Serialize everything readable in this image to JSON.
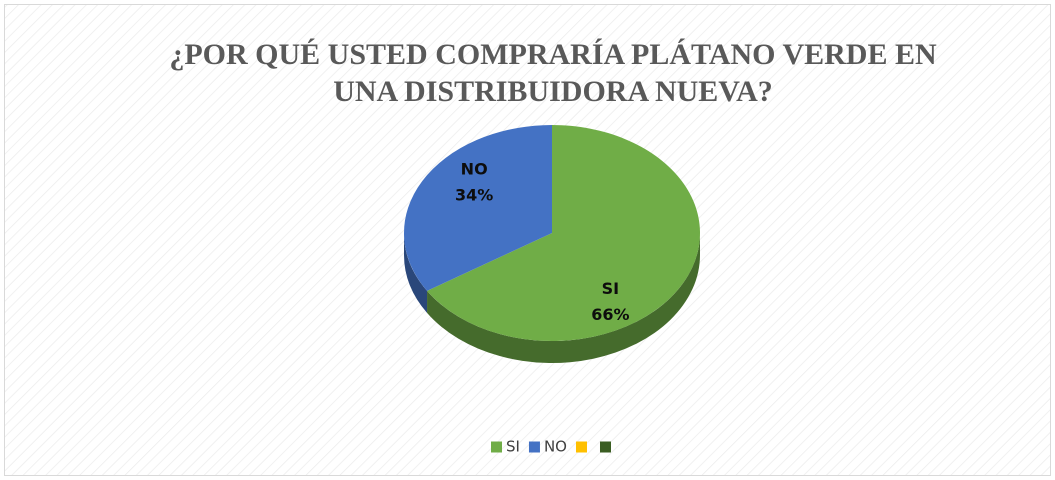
{
  "chart_data": {
    "type": "pie",
    "title": "¿POR QUÉ USTED COMPRARÍA PLÁTANO VERDE EN UNA DISTRIBUIDORA NUEVA?",
    "categories": [
      "SI",
      "NO",
      null,
      null
    ],
    "values": [
      66,
      34,
      0,
      0
    ],
    "value_labels": [
      "66%",
      "34%",
      null,
      null
    ],
    "colors": [
      "#70ad47",
      "#4472c4",
      "#ffc000",
      "#3a5d22"
    ],
    "legend": "bottom"
  }
}
